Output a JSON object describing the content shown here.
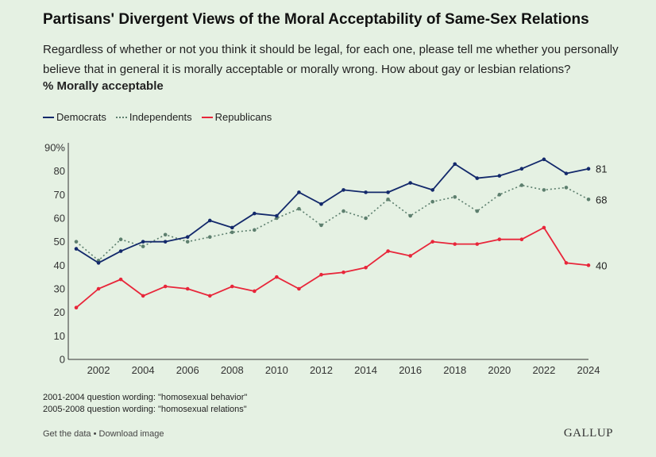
{
  "header": {
    "title": "Partisans' Divergent Views of the Moral Acceptability of Same-Sex Relations",
    "subtitle": "Regardless of whether or not you think it should be legal, for each one, please tell me whether you personally believe that in general it is morally acceptable or morally wrong. How about gay or lesbian relations?",
    "unit_label": "% Morally acceptable"
  },
  "notes": [
    "2001-2004 question wording: \"homosexual behavior\"",
    "2005-2008 question wording: \"homosexual relations\""
  ],
  "footer": {
    "get_data": "Get the data",
    "separator": " • ",
    "download": "Download image",
    "logo": "GALLUP"
  },
  "colors": {
    "background": "#e5f1e3",
    "democrats": "#13296b",
    "independents": "#5d7f6e",
    "republicans": "#e8263a"
  },
  "chart_data": {
    "type": "line",
    "title": "Partisans' Divergent Views of the Moral Acceptability of Same-Sex Relations",
    "ylabel": "% Morally acceptable",
    "xlabel": "",
    "xlim": [
      2001,
      2024
    ],
    "ylim": [
      0,
      90
    ],
    "yticks": [
      0,
      10,
      20,
      30,
      40,
      50,
      60,
      70,
      80,
      90
    ],
    "ytick_labels": [
      "0",
      "10",
      "20",
      "30",
      "40",
      "50",
      "60",
      "70",
      "80",
      "90%"
    ],
    "xticks": [
      2002,
      2004,
      2006,
      2008,
      2010,
      2012,
      2014,
      2016,
      2018,
      2020,
      2022,
      2024
    ],
    "xtick_labels": [
      "2002",
      "2004",
      "2006",
      "2008",
      "2010",
      "2012",
      "2014",
      "2016",
      "2018",
      "2020",
      "2022",
      "2024"
    ],
    "legend_position": "top-left",
    "x": [
      2001,
      2002,
      2003,
      2004,
      2005,
      2006,
      2007,
      2008,
      2009,
      2010,
      2011,
      2012,
      2013,
      2014,
      2015,
      2016,
      2017,
      2018,
      2019,
      2020,
      2021,
      2022,
      2023,
      2024
    ],
    "series": [
      {
        "name": "Democrats",
        "key": "democrats",
        "style": "solid",
        "end_label": "81",
        "values": [
          47,
          41,
          46,
          50,
          50,
          52,
          59,
          56,
          62,
          61,
          71,
          66,
          72,
          71,
          71,
          75,
          72,
          83,
          77,
          78,
          81,
          85,
          79,
          81
        ]
      },
      {
        "name": "Independents",
        "key": "independents",
        "style": "dotted",
        "end_label": "68",
        "values": [
          50,
          42,
          51,
          48,
          53,
          50,
          52,
          54,
          55,
          60,
          64,
          57,
          63,
          60,
          68,
          61,
          67,
          69,
          63,
          70,
          74,
          72,
          73,
          68
        ]
      },
      {
        "name": "Republicans",
        "key": "republicans",
        "style": "solid",
        "end_label": "40",
        "values": [
          22,
          30,
          34,
          27,
          31,
          30,
          27,
          31,
          29,
          35,
          30,
          36,
          37,
          39,
          46,
          44,
          50,
          49,
          49,
          51,
          51,
          56,
          41,
          40
        ]
      }
    ]
  }
}
